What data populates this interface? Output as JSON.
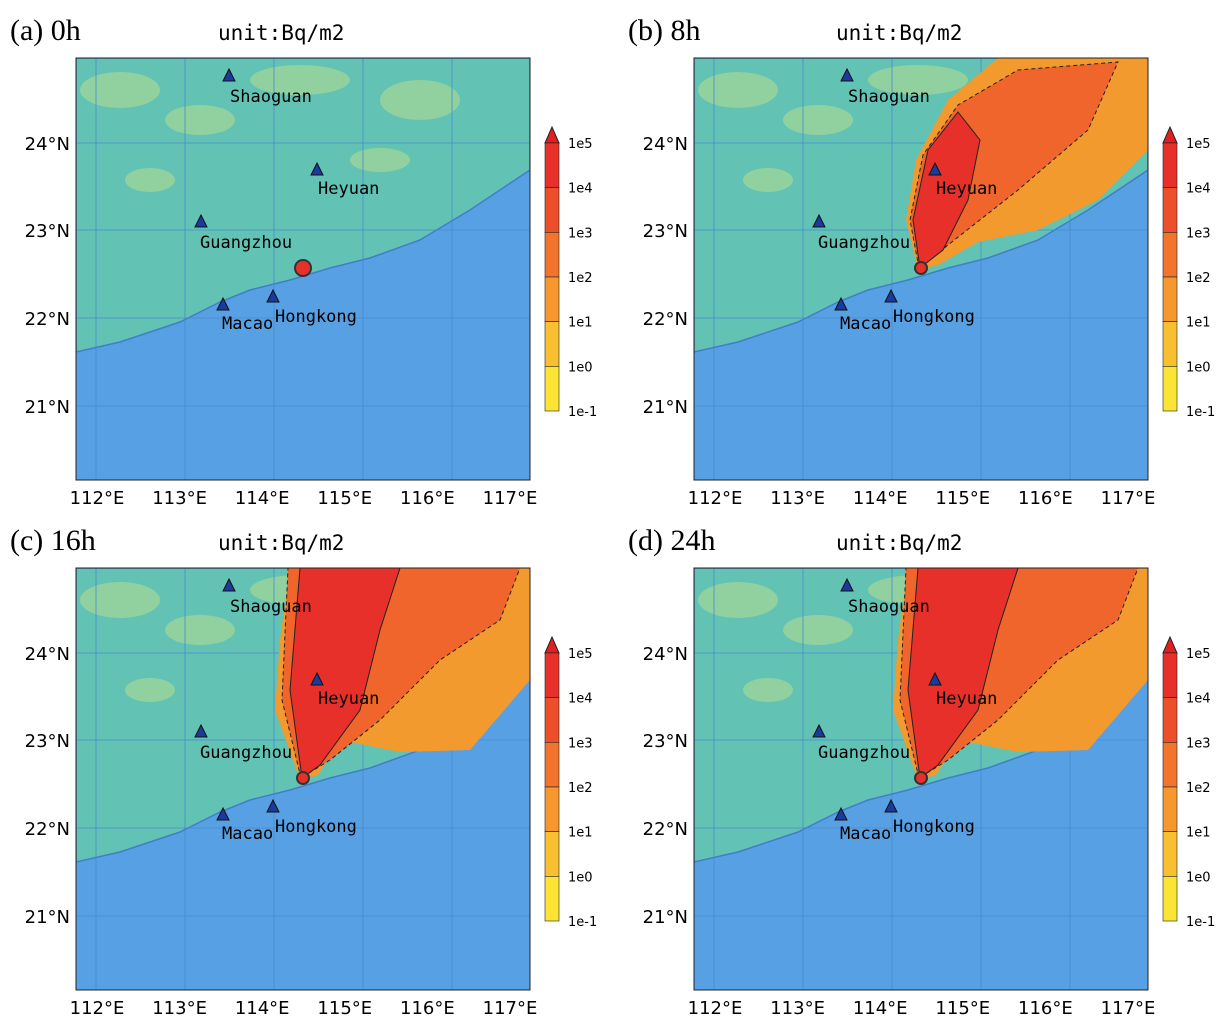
{
  "panels": [
    {
      "label": "(a) 0h",
      "unit": "unit:Bq/m2"
    },
    {
      "label": "(b) 8h",
      "unit": "unit:Bq/m2"
    },
    {
      "label": "(c) 16h",
      "unit": "unit:Bq/m2"
    },
    {
      "label": "(d) 24h",
      "unit": "unit:Bq/m2"
    }
  ],
  "cities": [
    "Shaoguan",
    "Heyuan",
    "Guangzhou",
    "Macao",
    "Hongkong"
  ],
  "xticks": [
    "112°E",
    "113°E",
    "114°E",
    "115°E",
    "116°E",
    "117°E"
  ],
  "yticks": [
    "24°N",
    "23°N",
    "22°N",
    "21°N"
  ],
  "colorbar": [
    "1e5",
    "1e4",
    "1e3",
    "1e2",
    "1e1",
    "1e0",
    "1e-1"
  ]
}
